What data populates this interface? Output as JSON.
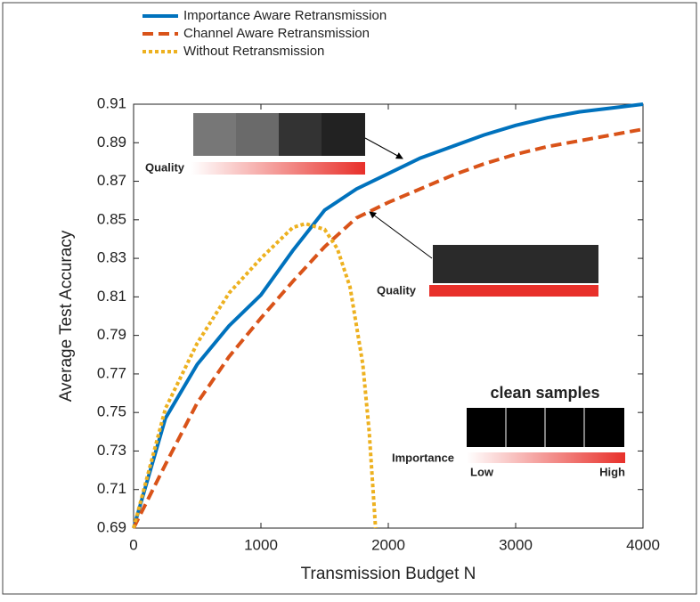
{
  "chart_data": {
    "type": "line",
    "xlabel": "Transmission Budget N",
    "ylabel": "Average Test Accuracy",
    "xlim": [
      0,
      4000
    ],
    "ylim": [
      0.69,
      0.91
    ],
    "xticks": [
      0,
      1000,
      2000,
      3000,
      4000
    ],
    "yticks": [
      0.69,
      0.71,
      0.73,
      0.75,
      0.77,
      0.79,
      0.81,
      0.83,
      0.85,
      0.87,
      0.89,
      0.91
    ],
    "legend": "top-left",
    "series": [
      {
        "name": "Importance Aware Retransmission",
        "color": "#0072bd",
        "style": "solid",
        "x": [
          0,
          250,
          500,
          750,
          1000,
          1250,
          1500,
          1750,
          2000,
          2250,
          2500,
          2750,
          3000,
          3250,
          3500,
          3750,
          4000
        ],
        "values": [
          0.69,
          0.747,
          0.775,
          0.795,
          0.811,
          0.834,
          0.855,
          0.866,
          0.874,
          0.882,
          0.888,
          0.894,
          0.899,
          0.903,
          0.906,
          0.908,
          0.91
        ]
      },
      {
        "name": "Channel Aware Retransmission",
        "color": "#d95319",
        "style": "dashed",
        "x": [
          0,
          250,
          500,
          750,
          1000,
          1250,
          1500,
          1750,
          2000,
          2250,
          2500,
          2750,
          3000,
          3250,
          3500,
          3750,
          4000
        ],
        "values": [
          0.69,
          0.723,
          0.755,
          0.779,
          0.799,
          0.818,
          0.836,
          0.851,
          0.859,
          0.866,
          0.873,
          0.879,
          0.884,
          0.888,
          0.891,
          0.894,
          0.897
        ]
      },
      {
        "name": "Without Retransmission",
        "color": "#edb120",
        "style": "dotted",
        "x": [
          0,
          250,
          500,
          750,
          1000,
          1250,
          1350,
          1500,
          1600,
          1700,
          1800,
          1850,
          1900
        ],
        "values": [
          0.69,
          0.752,
          0.786,
          0.812,
          0.83,
          0.846,
          0.848,
          0.845,
          0.835,
          0.815,
          0.775,
          0.74,
          0.69
        ]
      }
    ],
    "annotations": {
      "quality_top": "Quality",
      "quality_mid": "Quality",
      "clean": "clean samples",
      "importance": "Importance",
      "low": "Low",
      "high": "High"
    }
  }
}
